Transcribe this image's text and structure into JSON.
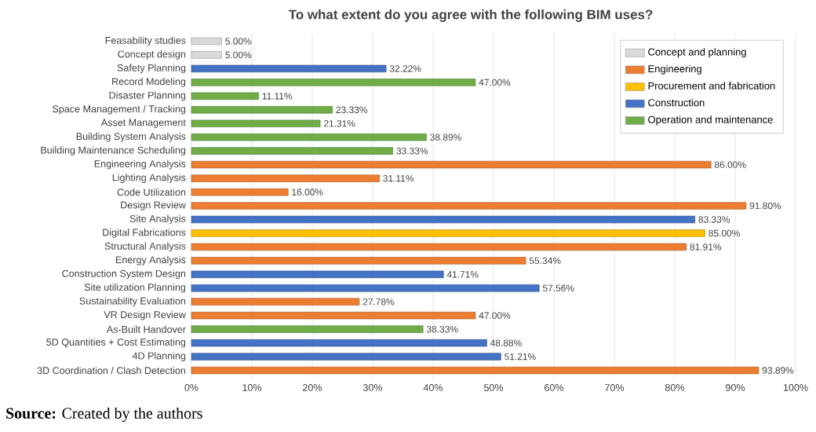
{
  "chart_data": {
    "type": "bar",
    "orientation": "horizontal",
    "stacked": true,
    "title": "To what extent do you agree with the following BIM uses?",
    "categories": [
      "Feasability studies",
      "Concept design",
      "Safety Planning",
      "Record Modeling",
      "Disaster Planning",
      "Space Management / Tracking",
      "Asset Management",
      "Building System Analysis",
      "Building Maintenance Scheduling",
      "Engineering Analysis",
      "Lighting Analysis",
      "Code Utilization",
      "Design Review",
      "Site Analysis",
      "Digital Fabrications",
      "Structural Analysis",
      "Energy Analysis",
      "Construction System Design",
      "Site utilization Planning",
      "Sustainability Evaluation",
      "VR Design Review",
      "As-Built Handover",
      "5D Quantities + Cost Estimating",
      "4D Planning",
      "3D Coordination / Clash Detection"
    ],
    "series": [
      {
        "name": "Concept and planning",
        "color": "#d9d9d9",
        "values": [
          5.0,
          5.0,
          null,
          null,
          null,
          null,
          null,
          null,
          null,
          null,
          null,
          null,
          null,
          null,
          null,
          null,
          null,
          null,
          null,
          null,
          null,
          null,
          null,
          null,
          null
        ],
        "value_labels": [
          "5.00%",
          "5.00%",
          null,
          null,
          null,
          null,
          null,
          null,
          null,
          null,
          null,
          null,
          null,
          null,
          null,
          null,
          null,
          null,
          null,
          null,
          null,
          null,
          null,
          null,
          null
        ]
      },
      {
        "name": "Engineering",
        "color": "#ed7d31",
        "values": [
          null,
          null,
          null,
          null,
          null,
          null,
          null,
          null,
          null,
          86.0,
          31.11,
          16.0,
          91.8,
          null,
          null,
          81.91,
          55.34,
          null,
          null,
          27.78,
          47.0,
          null,
          null,
          null,
          93.89
        ],
        "value_labels": [
          null,
          null,
          null,
          null,
          null,
          null,
          null,
          null,
          null,
          "86.00%",
          "31.11%",
          "16.00%",
          "91.80%",
          null,
          null,
          "81.91%",
          "55.34%",
          null,
          null,
          "27.78%",
          "47.00%",
          null,
          null,
          null,
          "93.89%"
        ]
      },
      {
        "name": "Procurement and fabrication",
        "color": "#ffc000",
        "values": [
          null,
          null,
          null,
          null,
          null,
          null,
          null,
          null,
          null,
          null,
          null,
          null,
          null,
          null,
          85.0,
          null,
          null,
          null,
          null,
          null,
          null,
          null,
          null,
          null,
          null
        ],
        "value_labels": [
          null,
          null,
          null,
          null,
          null,
          null,
          null,
          null,
          null,
          null,
          null,
          null,
          null,
          null,
          "85.00%",
          null,
          null,
          null,
          null,
          null,
          null,
          null,
          null,
          null,
          null
        ]
      },
      {
        "name": "Construction",
        "color": "#4472c4",
        "values": [
          null,
          null,
          32.22,
          null,
          null,
          null,
          null,
          null,
          null,
          null,
          null,
          null,
          null,
          83.33,
          null,
          null,
          null,
          41.71,
          57.56,
          null,
          null,
          null,
          48.88,
          51.21,
          null
        ],
        "value_labels": [
          null,
          null,
          "32.22%",
          null,
          null,
          null,
          null,
          null,
          null,
          null,
          null,
          null,
          null,
          "83.33%",
          null,
          null,
          null,
          "41.71%",
          "57.56%",
          null,
          null,
          null,
          "48.88%",
          "51.21%",
          null
        ]
      },
      {
        "name": "Operation and maintenance",
        "color": "#70ad47",
        "values": [
          null,
          null,
          null,
          47.0,
          11.11,
          23.33,
          21.31,
          38.89,
          33.33,
          null,
          null,
          null,
          null,
          null,
          null,
          null,
          null,
          null,
          null,
          null,
          null,
          38.33,
          null,
          null,
          null
        ],
        "value_labels": [
          null,
          null,
          null,
          "47.00%",
          "11.11%",
          "23.33%",
          "21.31%",
          "38.89%",
          "33.33%",
          null,
          null,
          null,
          null,
          null,
          null,
          null,
          null,
          null,
          null,
          null,
          null,
          "38.33%",
          null,
          null,
          null
        ]
      }
    ],
    "xlim": [
      0,
      100
    ],
    "xticks": [
      {
        "value": 0,
        "label": "0%"
      },
      {
        "value": 10,
        "label": "10%"
      },
      {
        "value": 20,
        "label": "20%"
      },
      {
        "value": 30,
        "label": "30%"
      },
      {
        "value": 40,
        "label": "40%"
      },
      {
        "value": 50,
        "label": "50%"
      },
      {
        "value": 60,
        "label": "60%"
      },
      {
        "value": 70,
        "label": "70%"
      },
      {
        "value": 80,
        "label": "80%"
      },
      {
        "value": 90,
        "label": "90%"
      },
      {
        "value": 100,
        "label": "100%"
      }
    ],
    "grid": "x",
    "legend": "top right",
    "annotations": [
      "**Source:** Created by the authors"
    ]
  }
}
